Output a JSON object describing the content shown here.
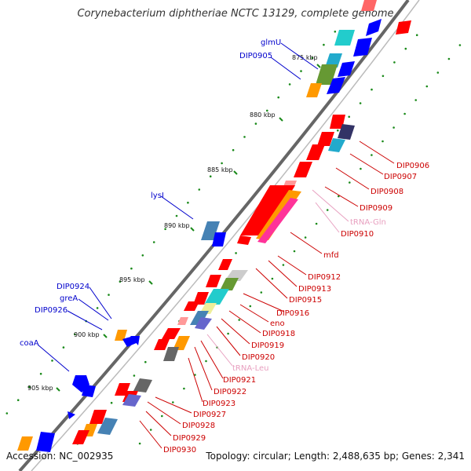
{
  "title": "Corynebacterium diphtheriae NCTC 13129, complete genome",
  "footer": {
    "accession": "Accession: NC_002935",
    "topology": "Topology: circular;",
    "length": "Length: 2,488,635 bp;",
    "genes": "Genes: 2,341"
  },
  "colors": {
    "backbone": "#888888",
    "forward_label": "#0000cc",
    "reverse_label": "#cc0000",
    "rna_label": "#e8a0c0",
    "tick": "#1a8a1a",
    "blue": "#0000ff",
    "red": "#ff0000",
    "orange": "#ff9900",
    "cyan": "#22cccc",
    "olive": "#669933",
    "steel": "#4682b4",
    "violet": "#6666cc",
    "gray": "#666666",
    "magenta": "#ff3399",
    "pink": "#ff9999",
    "navy": "#333366",
    "yellow": "#eeee99",
    "lightgray": "#cccccc"
  },
  "scale": {
    "ticks": [
      {
        "label": "875 kbp",
        "pos": 875
      },
      {
        "label": "880 kbp",
        "pos": 880
      },
      {
        "label": "885 kbp",
        "pos": 885
      },
      {
        "label": "890 kbp",
        "pos": 890
      },
      {
        "label": "895 kbp",
        "pos": 895
      },
      {
        "label": "900 kbp",
        "pos": 900
      },
      {
        "label": "905 kbp",
        "pos": 905
      }
    ]
  },
  "labels_forward": [
    {
      "text": "glmU"
    },
    {
      "text": "DIP0905"
    },
    {
      "text": "lysI"
    },
    {
      "text": "DIP0924"
    },
    {
      "text": "greA"
    },
    {
      "text": "DIP0926"
    },
    {
      "text": "coaA"
    }
  ],
  "labels_reverse": [
    {
      "text": "DIP0906",
      "kind": "gene"
    },
    {
      "text": "DIP0907",
      "kind": "gene"
    },
    {
      "text": "DIP0908",
      "kind": "gene"
    },
    {
      "text": "DIP0909",
      "kind": "gene"
    },
    {
      "text": "tRNA-Gln",
      "kind": "rna"
    },
    {
      "text": "DIP0910",
      "kind": "gene"
    },
    {
      "text": "mfd",
      "kind": "gene"
    },
    {
      "text": "DIP0912",
      "kind": "gene"
    },
    {
      "text": "DIP0913",
      "kind": "gene"
    },
    {
      "text": "DIP0915",
      "kind": "gene"
    },
    {
      "text": "DIP0916",
      "kind": "gene"
    },
    {
      "text": "eno",
      "kind": "gene"
    },
    {
      "text": "DIP0918",
      "kind": "gene"
    },
    {
      "text": "DIP0919",
      "kind": "gene"
    },
    {
      "text": "DIP0920",
      "kind": "gene"
    },
    {
      "text": "tRNA-Leu",
      "kind": "rna"
    },
    {
      "text": "DIP0921",
      "kind": "gene"
    },
    {
      "text": "DIP0922",
      "kind": "gene"
    },
    {
      "text": "DIP0923",
      "kind": "gene"
    },
    {
      "text": "DIP0927",
      "kind": "gene"
    },
    {
      "text": "DIP0928",
      "kind": "gene"
    },
    {
      "text": "DIP0929",
      "kind": "gene"
    },
    {
      "text": "DIP0930",
      "kind": "gene"
    }
  ]
}
